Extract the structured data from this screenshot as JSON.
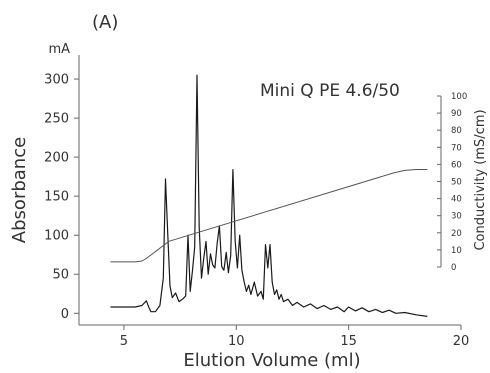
{
  "chart_data": {
    "type": "line",
    "panel_label": "(A)",
    "annotation": "Mini Q PE 4.6/50",
    "xlabel": "Elution Volume (ml)",
    "ylabel": "Absorbance",
    "y_unit": "mA",
    "y2label": "Conductivity (mS/cm)",
    "xlim": [
      3,
      20
    ],
    "ylim": [
      -15,
      318
    ],
    "y2lim": [
      0,
      100
    ],
    "xticks": [
      5,
      10,
      15,
      20
    ],
    "yticks": [
      0,
      50,
      100,
      150,
      200,
      250,
      300
    ],
    "y2ticks": [
      0,
      10,
      20,
      30,
      40,
      50,
      60,
      70,
      80,
      90,
      100
    ],
    "grid": false,
    "colors": {
      "absorbance": "#1a1a1a",
      "conductivity": "#555555"
    },
    "series": [
      {
        "axis": "left",
        "x": [
          4.4,
          5.0,
          5.5,
          5.8,
          6.0,
          6.1,
          6.2,
          6.4,
          6.6,
          6.75,
          6.85,
          6.95,
          7.05,
          7.15,
          7.3,
          7.45,
          7.6,
          7.75,
          7.85,
          7.95,
          8.05,
          8.15,
          8.25,
          8.35,
          8.45,
          8.55,
          8.65,
          8.75,
          8.85,
          8.95,
          9.05,
          9.15,
          9.25,
          9.35,
          9.45,
          9.55,
          9.65,
          9.75,
          9.85,
          9.95,
          10.05,
          10.15,
          10.25,
          10.35,
          10.45,
          10.55,
          10.65,
          10.8,
          10.95,
          11.1,
          11.2,
          11.3,
          11.4,
          11.5,
          11.6,
          11.7,
          11.8,
          11.9,
          12.0,
          12.1,
          12.3,
          12.5,
          12.7,
          13.0,
          13.3,
          13.6,
          13.9,
          14.2,
          14.5,
          14.8,
          15.0,
          15.3,
          15.6,
          15.9,
          16.2,
          16.5,
          16.8,
          17.1,
          17.5,
          18.0,
          18.5
        ],
        "values": [
          8,
          8,
          8,
          10,
          16,
          8,
          2,
          2,
          10,
          45,
          172,
          100,
          35,
          20,
          26,
          15,
          18,
          22,
          100,
          28,
          55,
          85,
          305,
          110,
          45,
          70,
          92,
          50,
          76,
          62,
          58,
          90,
          112,
          60,
          55,
          78,
          52,
          74,
          184,
          92,
          58,
          100,
          55,
          40,
          28,
          36,
          24,
          40,
          22,
          28,
          18,
          88,
          58,
          88,
          40,
          24,
          30,
          18,
          24,
          15,
          18,
          10,
          14,
          8,
          12,
          6,
          10,
          5,
          8,
          2,
          8,
          3,
          7,
          2,
          5,
          1,
          4,
          0,
          1,
          -2,
          -4
        ]
      },
      {
        "axis": "right",
        "x": [
          4.4,
          5.0,
          5.5,
          5.8,
          6.0,
          6.2,
          7.0,
          17.0,
          17.5,
          18.0,
          18.5
        ],
        "values": [
          3,
          3,
          3,
          3.5,
          5,
          7,
          15,
          55,
          56.5,
          57,
          57
        ]
      }
    ]
  }
}
